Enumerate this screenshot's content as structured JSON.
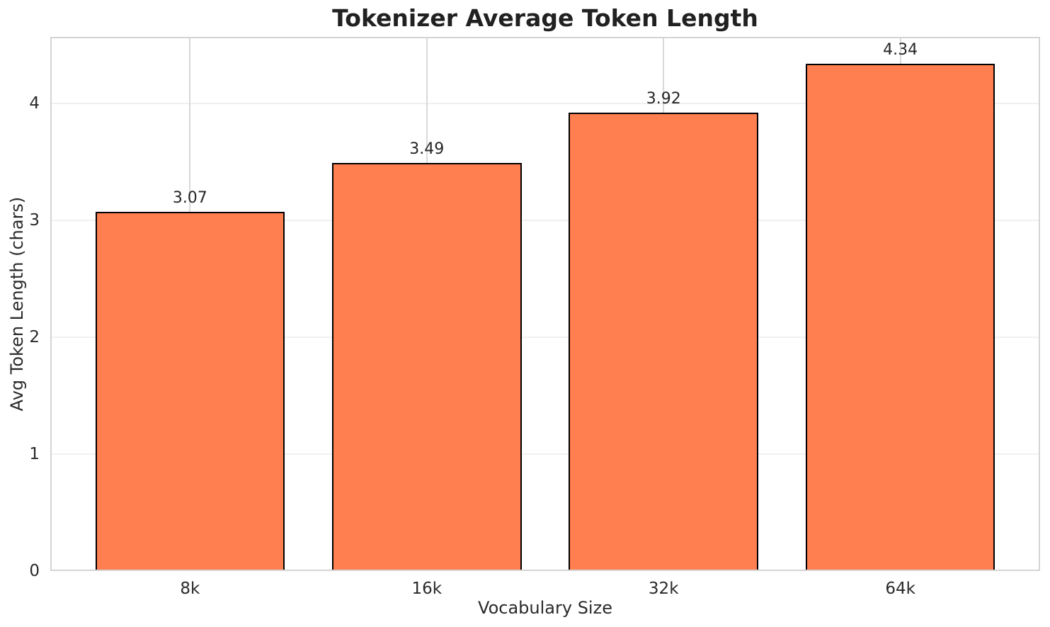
{
  "chart_data": {
    "type": "bar",
    "title": "Tokenizer Average Token Length",
    "xlabel": "Vocabulary Size",
    "ylabel": "Avg Token Length (chars)",
    "categories": [
      "8k",
      "16k",
      "32k",
      "64k"
    ],
    "values": [
      3.07,
      3.49,
      3.92,
      4.34
    ],
    "bar_labels": [
      "3.07",
      "3.49",
      "3.92",
      "4.34"
    ],
    "ytick_labels": [
      "0",
      "1",
      "2",
      "3",
      "4"
    ],
    "ytick_values": [
      0,
      1,
      2,
      3,
      4
    ],
    "ylim": [
      0,
      4.57
    ],
    "grid": true,
    "legend_position": "none",
    "colors": {
      "bar_fill": "#FF7F50",
      "bar_edge": "#000000",
      "grid_horizontal": "#f0f0f0",
      "grid_vertical": "#d9d9d9",
      "spine": "#d4d4d4",
      "tick_text": "#2a2a2a",
      "label_text": "#262626",
      "title_text": "#212121",
      "background": "#ffffff"
    }
  }
}
